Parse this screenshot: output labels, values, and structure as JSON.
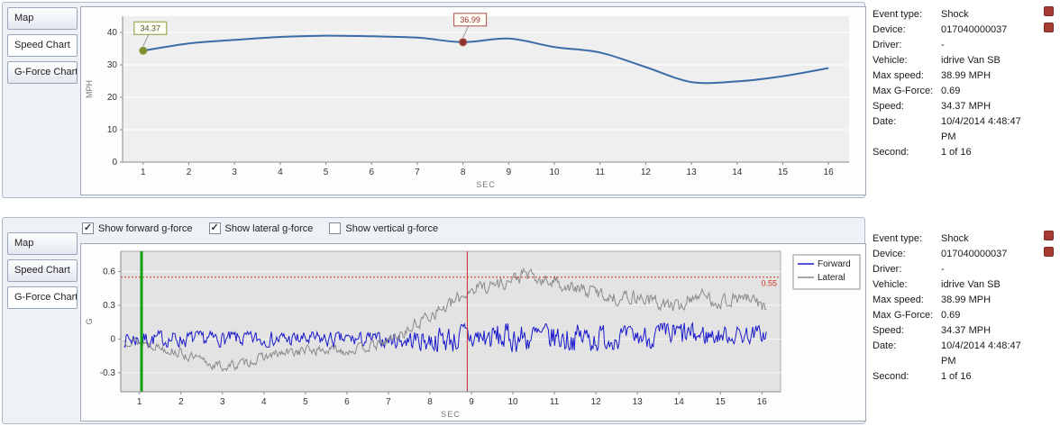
{
  "panels": [
    {
      "id": "speed",
      "tabs": [
        {
          "label": "Map"
        },
        {
          "label": "Speed Chart"
        },
        {
          "label": "G-Force Chart"
        }
      ],
      "selected_tab": 1
    },
    {
      "id": "gforce",
      "tabs": [
        {
          "label": "Map"
        },
        {
          "label": "Speed Chart"
        },
        {
          "label": "G-Force Chart"
        }
      ],
      "selected_tab": 2,
      "checkboxes": [
        {
          "label": "Show forward g-force",
          "checked": true
        },
        {
          "label": "Show lateral g-force",
          "checked": true
        },
        {
          "label": "Show vertical g-force",
          "checked": false
        }
      ]
    }
  ],
  "info": {
    "rows": [
      {
        "label": "Event type:",
        "value": "Shock"
      },
      {
        "label": "Device:",
        "value": "017040000037"
      },
      {
        "label": "Driver:",
        "value": "-"
      },
      {
        "label": "Vehicle:",
        "value": "idrive Van SB"
      },
      {
        "label": "Max speed:",
        "value": "38.99 MPH"
      },
      {
        "label": "Max G-Force:",
        "value": "0.69"
      },
      {
        "label": "Speed:",
        "value": "34.37 MPH"
      },
      {
        "label": "Date:",
        "value": "10/4/2014 4:48:47 PM"
      },
      {
        "label": "Second:",
        "value": "1 of 16"
      }
    ]
  },
  "chart_data": [
    {
      "id": "speed",
      "type": "line",
      "title": "",
      "xlabel": "SEC",
      "ylabel": "MPH",
      "xlim": [
        0.55,
        16.45
      ],
      "ylim": [
        0,
        45
      ],
      "xticks": [
        1,
        2,
        3,
        4,
        5,
        6,
        7,
        8,
        9,
        10,
        11,
        12,
        13,
        14,
        15,
        16
      ],
      "yticks": [
        0,
        10,
        20,
        30,
        40
      ],
      "x": [
        1,
        2,
        3,
        4,
        5,
        6,
        7,
        8,
        9,
        10,
        11,
        12,
        13,
        14,
        15,
        16
      ],
      "series": [
        {
          "name": "Speed",
          "color": "#3b6ca8",
          "width": 2,
          "values": [
            34.37,
            36.6,
            37.7,
            38.6,
            38.99,
            38.8,
            38.4,
            36.99,
            38.1,
            35.5,
            33.8,
            29.3,
            24.7,
            24.9,
            26.5,
            29.0
          ]
        }
      ],
      "markers": [
        {
          "x": 1,
          "y": 34.37,
          "label": "34.37",
          "color": "#7f8f2f",
          "border": "#8a9a3a",
          "label_color": "#55552a"
        },
        {
          "x": 8,
          "y": 36.99,
          "label": "36.99",
          "color": "#8e3434",
          "border": "#a84c4c",
          "label_color": "#9c3030"
        }
      ]
    },
    {
      "id": "gforce",
      "type": "line",
      "title": "",
      "xlabel": "SEC",
      "ylabel": "G",
      "xlim": [
        0.55,
        16.45
      ],
      "ylim": [
        -0.47,
        0.78
      ],
      "xticks": [
        1,
        2,
        3,
        4,
        5,
        6,
        7,
        8,
        9,
        10,
        11,
        12,
        13,
        14,
        15,
        16
      ],
      "yticks": [
        -0.3,
        0,
        0.3,
        0.6
      ],
      "legend": {
        "position": "right-top",
        "entries": [
          {
            "name": "Forward",
            "color": "#1a1acc"
          },
          {
            "name": "Lateral",
            "color": "#8a8a8a"
          }
        ]
      },
      "hlines": [
        {
          "y": 0.55,
          "label": "0.55",
          "color": "#cc3322"
        }
      ],
      "vlines": [
        {
          "x": 1.05,
          "color": "#10a010",
          "width": 3,
          "name": "selected-second-line"
        },
        {
          "x": 8.9,
          "color": "#cc2b2b",
          "width": 1,
          "name": "event-second-line"
        }
      ],
      "series": [
        {
          "name": "Forward",
          "color": "#1a1acc",
          "width": 1,
          "noise": {
            "seed": 7,
            "dt": 0.025,
            "smooth": 0.45,
            "base": [
              [
                1,
                0
              ],
              [
                8,
                -0.01
              ],
              [
                9,
                0.01
              ],
              [
                12,
                0.01
              ],
              [
                16,
                0.04
              ]
            ],
            "amp": [
              [
                1,
                0.055
              ],
              [
                7,
                0.05
              ],
              [
                8,
                0.08
              ],
              [
                9,
                0.1
              ],
              [
                12,
                0.09
              ],
              [
                13,
                0.07
              ],
              [
                14,
                0.1
              ],
              [
                15,
                0.06
              ],
              [
                16,
                0.06
              ]
            ]
          }
        },
        {
          "name": "Lateral",
          "color": "#8a8a8a",
          "width": 1,
          "noise": {
            "seed": 13,
            "dt": 0.025,
            "smooth": 0.5,
            "base": [
              [
                1,
                -0.02
              ],
              [
                1.8,
                -0.1
              ],
              [
                2.5,
                -0.2
              ],
              [
                3,
                -0.25
              ],
              [
                3.5,
                -0.22
              ],
              [
                4,
                -0.16
              ],
              [
                5,
                -0.1
              ],
              [
                6,
                -0.1
              ],
              [
                6.8,
                -0.05
              ],
              [
                7.5,
                0.08
              ],
              [
                8,
                0.22
              ],
              [
                8.5,
                0.3
              ],
              [
                9,
                0.45
              ],
              [
                9.5,
                0.48
              ],
              [
                10,
                0.52
              ],
              [
                10.3,
                0.58
              ],
              [
                10.7,
                0.5
              ],
              [
                11,
                0.52
              ],
              [
                11.5,
                0.44
              ],
              [
                12,
                0.42
              ],
              [
                12.5,
                0.36
              ],
              [
                13,
                0.38
              ],
              [
                13.5,
                0.32
              ],
              [
                14,
                0.28
              ],
              [
                14.4,
                0.4
              ],
              [
                15,
                0.33
              ],
              [
                15.5,
                0.37
              ],
              [
                16,
                0.3
              ]
            ],
            "amp": [
              [
                1,
                0.035
              ],
              [
                7,
                0.035
              ],
              [
                8,
                0.05
              ],
              [
                16,
                0.05
              ]
            ]
          }
        }
      ]
    }
  ]
}
